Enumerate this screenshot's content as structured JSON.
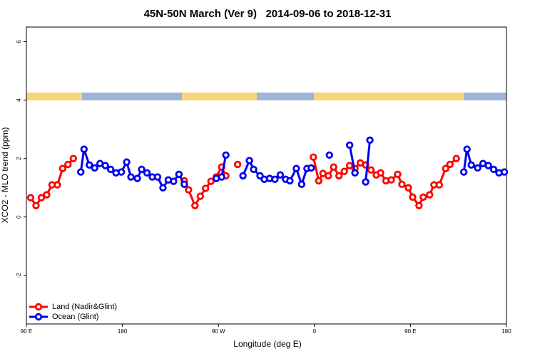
{
  "chart_data": {
    "type": "line",
    "title": "45N-50N March (Ver 9)   2014-09-06 to 2018-12-31",
    "xlabel": "Longitude (deg E)",
    "ylabel": "XCO2 - MLO trend (ppm)",
    "xlim": [
      90,
      540
    ],
    "xticks": [
      {
        "value": 90,
        "label": "90 E"
      },
      {
        "value": 180,
        "label": "180"
      },
      {
        "value": 270,
        "label": "90 W"
      },
      {
        "value": 360,
        "label": "0"
      },
      {
        "value": 450,
        "label": "90 E"
      },
      {
        "value": 540,
        "label": "180"
      }
    ],
    "ylim": [
      -3.66,
      6.5
    ],
    "yticks": [
      -2,
      0,
      2,
      4,
      6
    ],
    "legend": "lower left",
    "series": [
      {
        "name": "Land (Nadir&Glint)",
        "color": "#ff0000",
        "x": [
          94,
          99,
          104,
          109,
          114,
          119,
          124,
          129,
          134,
          null,
          238,
          242,
          248,
          253,
          258,
          263,
          268,
          273,
          277,
          null,
          288,
          null,
          359,
          364,
          368,
          373,
          378,
          383,
          388,
          393,
          398,
          403,
          408,
          413,
          418,
          422,
          427,
          432,
          438,
          442,
          448,
          452,
          458,
          462,
          468,
          472,
          477,
          483,
          487,
          493
        ],
        "values": [
          0.66,
          0.39,
          0.66,
          0.76,
          1.1,
          1.1,
          1.66,
          1.8,
          2.0,
          null,
          1.24,
          0.93,
          0.39,
          0.71,
          0.98,
          1.22,
          1.37,
          1.71,
          1.41,
          null,
          1.8,
          null,
          2.05,
          1.24,
          1.49,
          1.41,
          1.71,
          1.41,
          1.56,
          1.76,
          1.66,
          1.85,
          1.78,
          1.61,
          1.44,
          1.51,
          1.24,
          1.27,
          1.46,
          1.12,
          1.0,
          0.68,
          0.39,
          0.68,
          0.76,
          1.1,
          1.1,
          1.66,
          1.8,
          2.0
        ]
      },
      {
        "name": "Ocean (Glint)",
        "color": "#0000ee",
        "x": [
          141,
          144,
          149,
          154,
          159,
          164,
          169,
          174,
          179,
          184,
          188,
          194,
          198,
          203,
          208,
          213,
          218,
          223,
          228,
          233,
          238,
          null,
          268,
          273,
          277,
          null,
          293,
          299,
          303,
          309,
          313,
          318,
          323,
          328,
          333,
          337,
          343,
          348,
          353,
          357,
          null,
          374,
          null,
          393,
          398,
          null,
          408,
          412,
          null,
          500,
          503,
          507,
          513,
          518,
          523,
          528,
          533,
          538
        ],
        "values": [
          1.54,
          2.32,
          1.78,
          1.68,
          1.83,
          1.76,
          1.63,
          1.51,
          1.54,
          1.88,
          1.37,
          1.32,
          1.63,
          1.51,
          1.37,
          1.37,
          1.0,
          1.27,
          1.22,
          1.46,
          1.12,
          null,
          1.32,
          1.37,
          2.12,
          null,
          1.41,
          1.93,
          1.63,
          1.41,
          1.29,
          1.32,
          1.29,
          1.44,
          1.29,
          1.24,
          1.66,
          1.12,
          1.66,
          1.68,
          null,
          2.12,
          null,
          2.46,
          1.51,
          null,
          1.2,
          2.63,
          null,
          1.54,
          2.32,
          1.78,
          1.68,
          1.83,
          1.76,
          1.63,
          1.51,
          1.54
        ]
      }
    ]
  }
}
